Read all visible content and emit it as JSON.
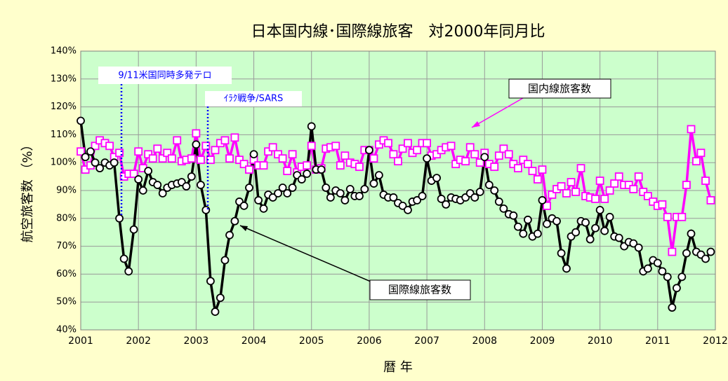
{
  "chart_data": {
    "type": "line",
    "title": "日本国内線･国際線旅客　対2000年同月比",
    "x_label": "暦 年",
    "y_label": "航空旅客数 （%）",
    "annotations": [
      "9/11米国同時多発テロ",
      "ｲﾗｸ戦争/SARS",
      "国内線旅客数",
      "国際線旅客数"
    ],
    "xlim": [
      2001,
      2012
    ],
    "xticks": [
      2001,
      2002,
      2003,
      2004,
      2005,
      2006,
      2007,
      2008,
      2009,
      2010,
      2011,
      2012
    ],
    "ylim": [
      40,
      140
    ],
    "yticks": [
      {
        "value": 40,
        "label": "40%"
      },
      {
        "value": 50,
        "label": "50%"
      },
      {
        "value": 60,
        "label": "60%"
      },
      {
        "value": 70,
        "label": "70%"
      },
      {
        "value": 80,
        "label": "80%"
      },
      {
        "value": 90,
        "label": "90%"
      },
      {
        "value": 100,
        "label": "100%"
      },
      {
        "value": 110,
        "label": "110%"
      },
      {
        "value": 120,
        "label": "120%"
      },
      {
        "value": 130,
        "label": "130%"
      },
      {
        "value": 140,
        "label": "140%"
      }
    ],
    "grid": true,
    "x": [
      2001,
      2001.08,
      2001.17,
      2001.25,
      2001.33,
      2001.42,
      2001.5,
      2001.58,
      2001.67,
      2001.75,
      2001.83,
      2001.92,
      2002,
      2002.08,
      2002.17,
      2002.25,
      2002.33,
      2002.42,
      2002.5,
      2002.58,
      2002.67,
      2002.75,
      2002.83,
      2002.92,
      2003,
      2003.08,
      2003.17,
      2003.25,
      2003.33,
      2003.42,
      2003.5,
      2003.58,
      2003.67,
      2003.75,
      2003.83,
      2003.92,
      2004,
      2004.08,
      2004.17,
      2004.25,
      2004.33,
      2004.42,
      2004.5,
      2004.58,
      2004.67,
      2004.75,
      2004.83,
      2004.92,
      2005,
      2005.08,
      2005.17,
      2005.25,
      2005.33,
      2005.42,
      2005.5,
      2005.58,
      2005.67,
      2005.75,
      2005.83,
      2005.92,
      2006,
      2006.08,
      2006.17,
      2006.25,
      2006.33,
      2006.42,
      2006.5,
      2006.58,
      2006.67,
      2006.75,
      2006.83,
      2006.92,
      2007,
      2007.08,
      2007.17,
      2007.25,
      2007.33,
      2007.42,
      2007.5,
      2007.58,
      2007.67,
      2007.75,
      2007.83,
      2007.92,
      2008,
      2008.08,
      2008.17,
      2008.25,
      2008.33,
      2008.42,
      2008.5,
      2008.58,
      2008.67,
      2008.75,
      2008.83,
      2008.92,
      2009,
      2009.08,
      2009.17,
      2009.25,
      2009.33,
      2009.42,
      2009.5,
      2009.58,
      2009.67,
      2009.75,
      2009.83,
      2009.92,
      2010,
      2010.08,
      2010.17,
      2010.25,
      2010.33,
      2010.42,
      2010.5,
      2010.58,
      2010.67,
      2010.75,
      2010.83,
      2010.92,
      2011,
      2011.08,
      2011.17,
      2011.25,
      2011.33,
      2011.42,
      2011.5,
      2011.58,
      2011.67,
      2011.75,
      2011.83,
      2011.92
    ],
    "series": [
      {
        "name": "国内線旅客数",
        "color": "#ff00ff",
        "marker": "square",
        "values": [
          104,
          97.5,
          99,
          106,
          108,
          107,
          106,
          102,
          103.5,
          95,
          96,
          96,
          104,
          98,
          103,
          101.5,
          105,
          101.5,
          103.5,
          101.5,
          108,
          100.5,
          101,
          101.5,
          110.5,
          101,
          106,
          101,
          104.5,
          107,
          108,
          101.5,
          109,
          101,
          99.5,
          97.5,
          101,
          99,
          99,
          104,
          105.5,
          103,
          101.5,
          97,
          103,
          96.5,
          98.5,
          99,
          106,
          97.5,
          98,
          105,
          105.5,
          106,
          99,
          102.5,
          100,
          99.5,
          98.5,
          104.5,
          104.5,
          101.5,
          106.5,
          108,
          107,
          103,
          100.5,
          105,
          107,
          103.5,
          104.5,
          107,
          107,
          102.5,
          103,
          104.5,
          105.5,
          106,
          99.5,
          101,
          100.5,
          105.5,
          103,
          100,
          103.5,
          99.5,
          98.5,
          102.5,
          105,
          103,
          99.5,
          98,
          101,
          99.5,
          97,
          94,
          97.5,
          84.5,
          88.5,
          90.5,
          91.5,
          89,
          93,
          89.5,
          98,
          88,
          87.5,
          87,
          93.5,
          87,
          90,
          92.5,
          95,
          92,
          92,
          90.5,
          95,
          89.5,
          88,
          86,
          84.5,
          85,
          80.5,
          68,
          80.5,
          80.5,
          92,
          112,
          100.5,
          103.5,
          93.5,
          86.5
        ]
      },
      {
        "name": "国際線旅客数",
        "color": "#000000",
        "marker": "circle",
        "values": [
          115,
          102,
          104,
          100,
          98,
          100,
          99,
          100,
          80,
          65.5,
          61,
          76,
          94,
          90,
          97,
          93,
          92,
          89,
          91,
          92,
          92.5,
          93,
          91.5,
          95,
          106.5,
          92,
          83,
          57.5,
          46.5,
          51.5,
          65,
          74,
          79,
          86,
          84.5,
          91,
          103,
          86.5,
          83.5,
          88.5,
          87.5,
          89,
          91,
          89,
          91,
          95.5,
          94,
          96,
          113,
          97.5,
          97.5,
          91,
          87.5,
          90,
          89,
          86.5,
          90.5,
          88,
          88,
          90.5,
          104.5,
          92.5,
          95.5,
          88.5,
          87.5,
          87.5,
          85.5,
          84.5,
          83,
          86,
          86.5,
          88,
          101.5,
          93.5,
          94.5,
          87,
          85,
          87.5,
          87,
          86.5,
          87.5,
          89,
          87.5,
          89.5,
          102,
          92,
          90,
          86,
          83.5,
          81.5,
          81,
          77,
          74.5,
          79.5,
          73.5,
          74.5,
          86.5,
          78,
          80,
          79,
          67.5,
          62,
          73.5,
          75,
          79,
          78.5,
          72.5,
          76.5,
          83,
          75.5,
          80.5,
          73.5,
          73,
          70,
          71.5,
          71,
          69.5,
          61,
          62,
          65,
          64,
          61,
          59,
          48,
          55,
          59,
          67.5,
          74.5,
          68,
          67,
          65.5,
          68
        ]
      }
    ]
  }
}
